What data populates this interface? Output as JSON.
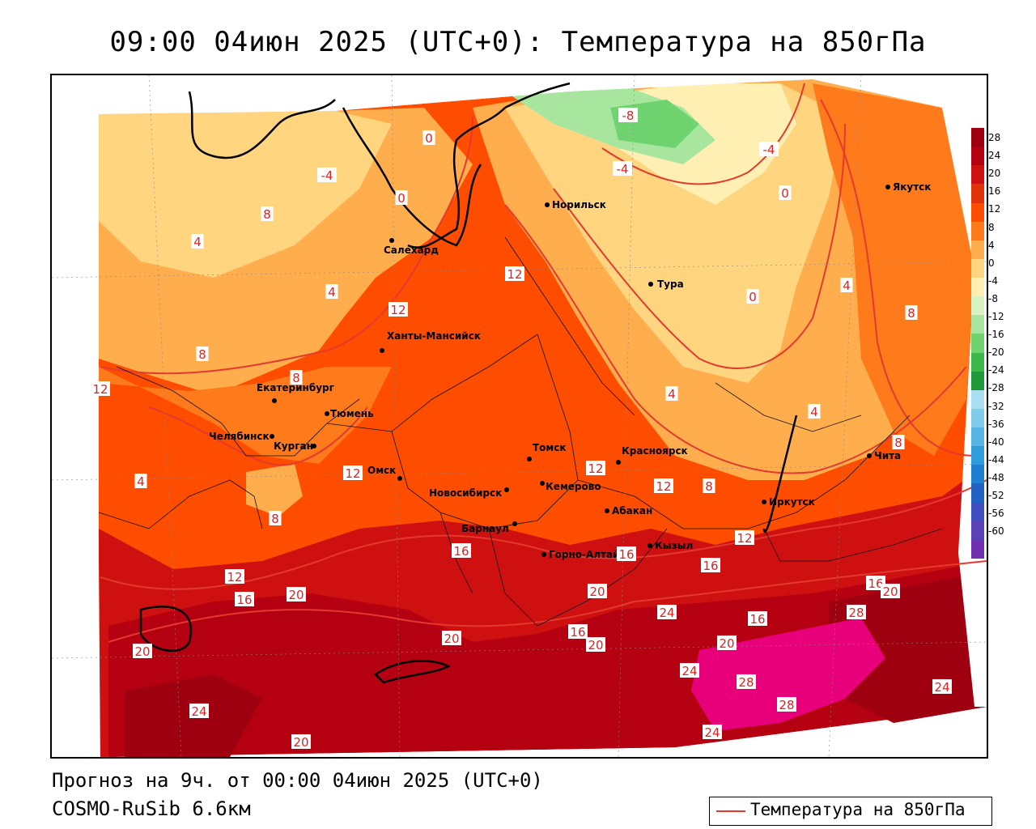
{
  "title": "09:00 04июн 2025 (UTC+0): Температура на 850гПа",
  "footer": {
    "forecast": "Прогноз на 9ч. от 00:00 04июн 2025 (UTC+0)",
    "model": "COSMO-RuSib 6.6км"
  },
  "legend": {
    "label": "Температура на 850гПа",
    "line_color": "#e23a2f"
  },
  "colorbar": {
    "ticks": [
      "28",
      "24",
      "20",
      "16",
      "12",
      "8",
      "4",
      "0",
      "-4",
      "-8",
      "-12",
      "-16",
      "-20",
      "-24",
      "-28",
      "-32",
      "-36",
      "-40",
      "-44",
      "-48",
      "-52",
      "-56",
      "-60"
    ],
    "colors": [
      "#9e0010",
      "#b50012",
      "#cf1010",
      "#e0330a",
      "#ff4d00",
      "#ff7a1a",
      "#ffad4d",
      "#ffd580",
      "#ffefb3",
      "#d9f2c2",
      "#a8e6a0",
      "#6fd46f",
      "#3cb84a",
      "#1f9a3a",
      "#a9def0",
      "#7fcbea",
      "#56b5e5",
      "#2f9ddc",
      "#1f7fd1",
      "#1f62c4",
      "#3d4fc0",
      "#5a41b8",
      "#6f2fb0"
    ]
  },
  "cities": [
    {
      "name": "Норильск"
    },
    {
      "name": "Салехард"
    },
    {
      "name": "Тура"
    },
    {
      "name": "Якутск"
    },
    {
      "name": "Ханты-Мансийск"
    },
    {
      "name": "Екатеринбург"
    },
    {
      "name": "Тюмень"
    },
    {
      "name": "Челябинск"
    },
    {
      "name": "Курган"
    },
    {
      "name": "Омск"
    },
    {
      "name": "Новосибирск"
    },
    {
      "name": "Томск"
    },
    {
      "name": "Кемерово"
    },
    {
      "name": "Красноярск"
    },
    {
      "name": "Барнаул"
    },
    {
      "name": "Абакан"
    },
    {
      "name": "Горно-Алтайск"
    },
    {
      "name": "Кызыл"
    },
    {
      "name": "Иркутск"
    },
    {
      "name": "Чита"
    }
  ],
  "isotherm_labels": [
    "-8",
    "-4",
    "-4",
    "-4",
    "0",
    "0",
    "0",
    "0",
    "4",
    "4",
    "4",
    "4",
    "4",
    "4",
    "8",
    "8",
    "8",
    "8",
    "8",
    "8",
    "8",
    "12",
    "12",
    "12",
    "12",
    "12",
    "12",
    "12",
    "12",
    "16",
    "16",
    "16",
    "16",
    "16",
    "16",
    "16",
    "20",
    "20",
    "20",
    "20",
    "20",
    "20",
    "20",
    "20",
    "24",
    "24",
    "24",
    "24",
    "24",
    "28",
    "28",
    "28"
  ]
}
